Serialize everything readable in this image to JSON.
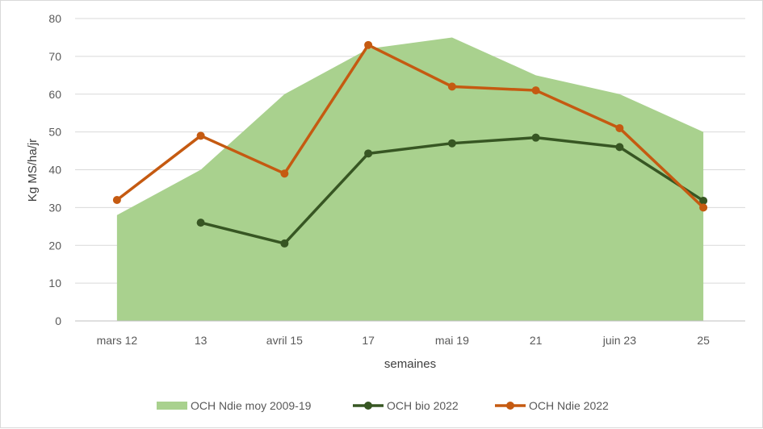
{
  "chart_data": {
    "type": "line",
    "title": "",
    "xlabel": "semaines",
    "ylabel": "Kg MS/ha/jr",
    "ylim": [
      0,
      80
    ],
    "yticks": [
      "0",
      "10",
      "20",
      "30",
      "40",
      "50",
      "60",
      "70",
      "80"
    ],
    "categories": [
      "mars 12",
      "13",
      "avril 15",
      "17",
      "mai 19",
      "21",
      "juin 23",
      "25"
    ],
    "grid": true,
    "legend_position": "bottom",
    "series": [
      {
        "name": "OCH Ndie moy 2009-19",
        "type": "area",
        "color": "#a9d18e",
        "values": [
          28,
          40,
          60,
          72,
          75,
          65,
          60,
          50
        ]
      },
      {
        "name": "OCH bio 2022",
        "type": "line",
        "color": "#375623",
        "values": [
          null,
          26,
          20.5,
          44.3,
          47,
          48.5,
          46,
          31.8
        ]
      },
      {
        "name": "OCH Ndie 2022",
        "type": "line",
        "color": "#c55a11",
        "values": [
          32,
          49,
          39,
          73,
          62,
          61,
          51,
          30
        ]
      }
    ]
  }
}
